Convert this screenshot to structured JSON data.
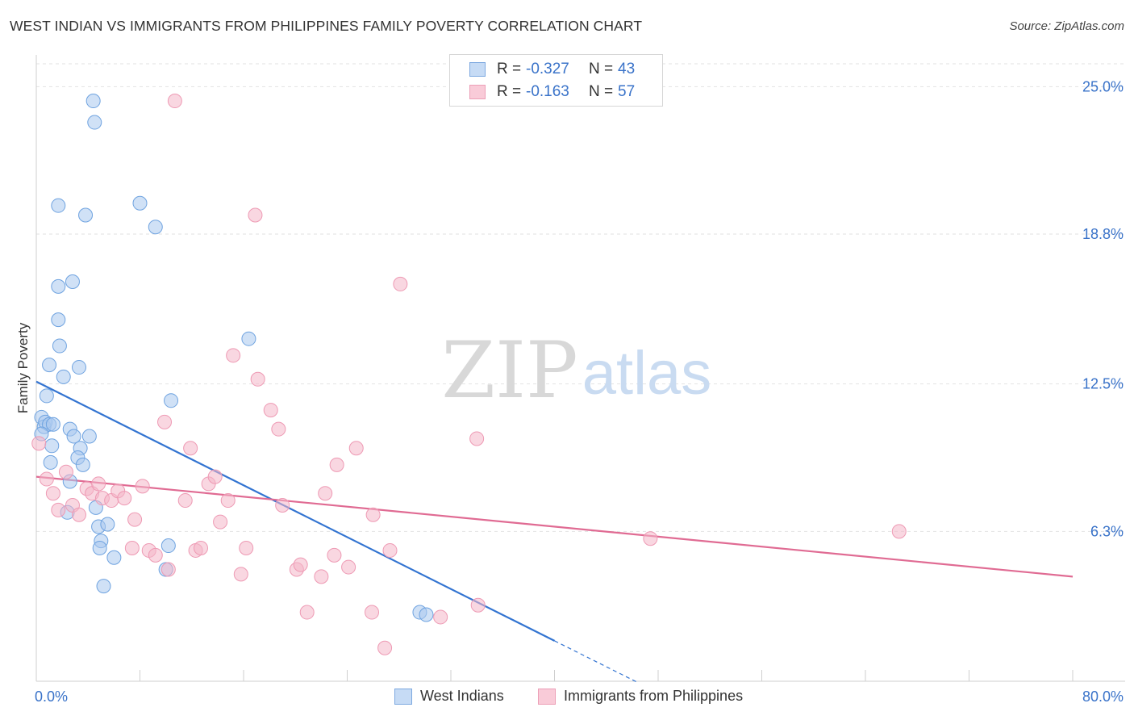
{
  "title": "WEST INDIAN VS IMMIGRANTS FROM PHILIPPINES FAMILY POVERTY CORRELATION CHART",
  "source": "Source: ZipAtlas.com",
  "watermark": {
    "zip": "ZIP",
    "atlas": "atlas"
  },
  "legend": {
    "r_label": "R =",
    "n_label": "N =",
    "rows": [
      {
        "name": "West Indians",
        "r": "-0.327",
        "n": "43",
        "color": "#a9c8ef"
      },
      {
        "name": "Immigrants from Philippines",
        "r": "-0.163",
        "n": "57",
        "color": "#f4b6c8"
      }
    ]
  },
  "chart_data": {
    "type": "scatter",
    "title": "WEST INDIAN VS IMMIGRANTS FROM PHILIPPINES FAMILY POVERTY CORRELATION CHART",
    "xlabel": "",
    "ylabel": "Family Poverty",
    "xlim": [
      0,
      80
    ],
    "ylim": [
      0,
      26.2
    ],
    "x_tick_labels": [
      "0.0%",
      "80.0%"
    ],
    "y_ticks": [
      6.3,
      12.5,
      18.8,
      25.0
    ],
    "y_tick_labels": [
      "6.3%",
      "12.5%",
      "18.8%",
      "25.0%"
    ],
    "grid": true,
    "legend_position": "top-center",
    "series": [
      {
        "name": "West Indians",
        "color": "#6fa3e0",
        "fill": "#a9c8ef",
        "line_color": "#3374d1",
        "trend": {
          "x0": 0,
          "y0": 12.6,
          "x1": 40,
          "y1": 1.7,
          "dashed_to_x": 46.5
        },
        "points": [
          [
            0.4,
            11.1
          ],
          [
            0.6,
            10.7
          ],
          [
            0.7,
            10.9
          ],
          [
            1.0,
            10.8
          ],
          [
            0.4,
            10.4
          ],
          [
            0.8,
            12.0
          ],
          [
            1.0,
            13.3
          ],
          [
            1.3,
            10.8
          ],
          [
            1.2,
            9.9
          ],
          [
            1.1,
            9.2
          ],
          [
            1.7,
            15.2
          ],
          [
            1.8,
            14.1
          ],
          [
            2.1,
            12.8
          ],
          [
            1.7,
            16.6
          ],
          [
            1.7,
            20.0
          ],
          [
            2.8,
            16.8
          ],
          [
            3.3,
            13.2
          ],
          [
            2.6,
            10.6
          ],
          [
            2.9,
            10.3
          ],
          [
            3.4,
            9.8
          ],
          [
            3.2,
            9.4
          ],
          [
            3.6,
            9.1
          ],
          [
            4.1,
            10.3
          ],
          [
            2.6,
            8.4
          ],
          [
            2.4,
            7.1
          ],
          [
            4.6,
            7.3
          ],
          [
            4.8,
            6.5
          ],
          [
            5.0,
            5.9
          ],
          [
            4.9,
            5.6
          ],
          [
            5.5,
            6.6
          ],
          [
            6.0,
            5.2
          ],
          [
            5.2,
            4.0
          ],
          [
            4.4,
            24.4
          ],
          [
            4.5,
            23.5
          ],
          [
            3.8,
            19.6
          ],
          [
            8.0,
            20.1
          ],
          [
            9.2,
            19.1
          ],
          [
            10.4,
            11.8
          ],
          [
            10.2,
            5.7
          ],
          [
            10.0,
            4.7
          ],
          [
            16.4,
            14.4
          ],
          [
            29.6,
            2.9
          ],
          [
            30.1,
            2.8
          ]
        ]
      },
      {
        "name": "Immigrants from Philippines",
        "color": "#ee9ab4",
        "fill": "#f4b6c8",
        "line_color": "#e06b93",
        "trend": {
          "x0": 0,
          "y0": 8.6,
          "x1": 80,
          "y1": 4.4
        },
        "points": [
          [
            0.2,
            10.0
          ],
          [
            0.8,
            8.5
          ],
          [
            1.3,
            7.9
          ],
          [
            1.7,
            7.2
          ],
          [
            2.3,
            8.8
          ],
          [
            2.8,
            7.4
          ],
          [
            3.3,
            7.0
          ],
          [
            3.9,
            8.1
          ],
          [
            4.3,
            7.9
          ],
          [
            4.8,
            8.3
          ],
          [
            5.1,
            7.7
          ],
          [
            5.8,
            7.6
          ],
          [
            6.3,
            8.0
          ],
          [
            6.8,
            7.7
          ],
          [
            7.6,
            6.8
          ],
          [
            8.2,
            8.2
          ],
          [
            7.4,
            5.6
          ],
          [
            8.7,
            5.5
          ],
          [
            9.2,
            5.3
          ],
          [
            10.2,
            4.7
          ],
          [
            9.9,
            10.9
          ],
          [
            11.5,
            7.6
          ],
          [
            11.9,
            9.8
          ],
          [
            12.3,
            5.5
          ],
          [
            12.7,
            5.6
          ],
          [
            13.3,
            8.3
          ],
          [
            13.8,
            8.6
          ],
          [
            14.2,
            6.7
          ],
          [
            14.8,
            7.6
          ],
          [
            15.2,
            13.7
          ],
          [
            15.8,
            4.5
          ],
          [
            16.2,
            5.6
          ],
          [
            17.1,
            12.7
          ],
          [
            18.1,
            11.4
          ],
          [
            18.7,
            10.6
          ],
          [
            19.0,
            7.4
          ],
          [
            20.1,
            4.7
          ],
          [
            20.4,
            4.9
          ],
          [
            20.9,
            2.9
          ],
          [
            22.0,
            4.4
          ],
          [
            22.3,
            7.9
          ],
          [
            23.0,
            5.3
          ],
          [
            23.2,
            9.1
          ],
          [
            24.1,
            4.8
          ],
          [
            24.7,
            9.8
          ],
          [
            25.9,
            2.9
          ],
          [
            26.0,
            7.0
          ],
          [
            26.9,
            1.4
          ],
          [
            27.3,
            5.5
          ],
          [
            28.1,
            16.7
          ],
          [
            31.2,
            2.7
          ],
          [
            34.1,
            3.2
          ],
          [
            10.7,
            24.4
          ],
          [
            16.9,
            19.6
          ],
          [
            34.0,
            10.2
          ],
          [
            47.4,
            6.0
          ],
          [
            66.6,
            6.3
          ]
        ]
      }
    ]
  }
}
